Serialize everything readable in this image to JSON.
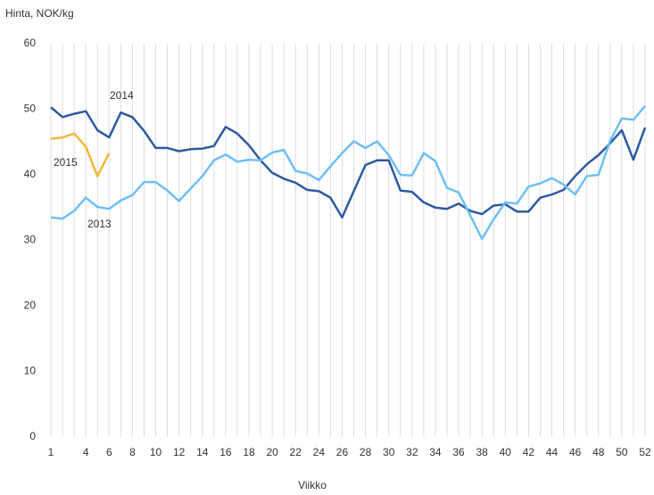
{
  "chart_data": {
    "type": "line",
    "title": "Hinta, NOK/kg",
    "x_label": "Viikko",
    "x": [
      1,
      2,
      3,
      4,
      5,
      6,
      7,
      8,
      9,
      10,
      11,
      12,
      13,
      14,
      15,
      16,
      17,
      18,
      19,
      20,
      21,
      22,
      23,
      24,
      25,
      26,
      27,
      28,
      29,
      30,
      31,
      32,
      33,
      34,
      35,
      36,
      37,
      38,
      39,
      40,
      41,
      42,
      43,
      44,
      45,
      46,
      47,
      48,
      49,
      50,
      51,
      52
    ],
    "xlim": [
      1,
      52
    ],
    "xticks": [
      1,
      4,
      6,
      8,
      10,
      12,
      14,
      16,
      18,
      20,
      22,
      24,
      26,
      28,
      30,
      32,
      34,
      36,
      38,
      40,
      42,
      44,
      46,
      48,
      50,
      52
    ],
    "ylim": [
      0,
      60
    ],
    "yticks": [
      0,
      10,
      20,
      30,
      40,
      50,
      60
    ],
    "grid": "vertical",
    "series": [
      {
        "name": "2014",
        "color": "#2e5aa0",
        "values": [
          50.3,
          48.8,
          49.3,
          49.7,
          46.8,
          45.7,
          49.5,
          48.8,
          46.7,
          44.1,
          44.1,
          43.6,
          43.9,
          44.0,
          44.4,
          47.3,
          46.3,
          44.5,
          42.2,
          40.3,
          39.4,
          38.8,
          37.7,
          37.5,
          36.5,
          33.5,
          37.5,
          41.5,
          42.2,
          42.2,
          37.6,
          37.4,
          35.8,
          35.0,
          34.8,
          35.6,
          34.5,
          34.0,
          35.3,
          35.5,
          34.4,
          34.4,
          36.5,
          37.0,
          37.7,
          39.8,
          41.6,
          43.0,
          44.8,
          46.8,
          42.3,
          47.2
        ]
      },
      {
        "name": "2013",
        "color": "#6fbff5",
        "values": [
          33.5,
          33.3,
          34.5,
          36.5,
          35.1,
          34.8,
          36.1,
          36.9,
          38.9,
          38.9,
          37.6,
          36.0,
          37.9,
          39.8,
          42.2,
          43.1,
          42.0,
          42.3,
          42.2,
          43.4,
          43.8,
          40.6,
          40.2,
          39.2,
          41.3,
          43.3,
          45.1,
          44.1,
          45.1,
          43.0,
          40.0,
          39.9,
          43.3,
          42.1,
          38.0,
          37.3,
          33.8,
          30.2,
          33.2,
          35.8,
          35.6,
          38.2,
          38.7,
          39.5,
          38.5,
          37.0,
          39.8,
          40.0,
          45.2,
          48.6,
          48.4,
          50.5
        ]
      },
      {
        "name": "2015",
        "color": "#f0b93c",
        "values": [
          45.5,
          45.7,
          46.3,
          44.3,
          39.8,
          43.3,
          null,
          null,
          null,
          null,
          null,
          null,
          null,
          null,
          null,
          null,
          null,
          null,
          null,
          null,
          null,
          null,
          null,
          null,
          null,
          null,
          null,
          null,
          null,
          null,
          null,
          null,
          null,
          null,
          null,
          null,
          null,
          null,
          null,
          null,
          null,
          null,
          null,
          null,
          null,
          null,
          null,
          null,
          null,
          null,
          null,
          null
        ]
      }
    ]
  }
}
